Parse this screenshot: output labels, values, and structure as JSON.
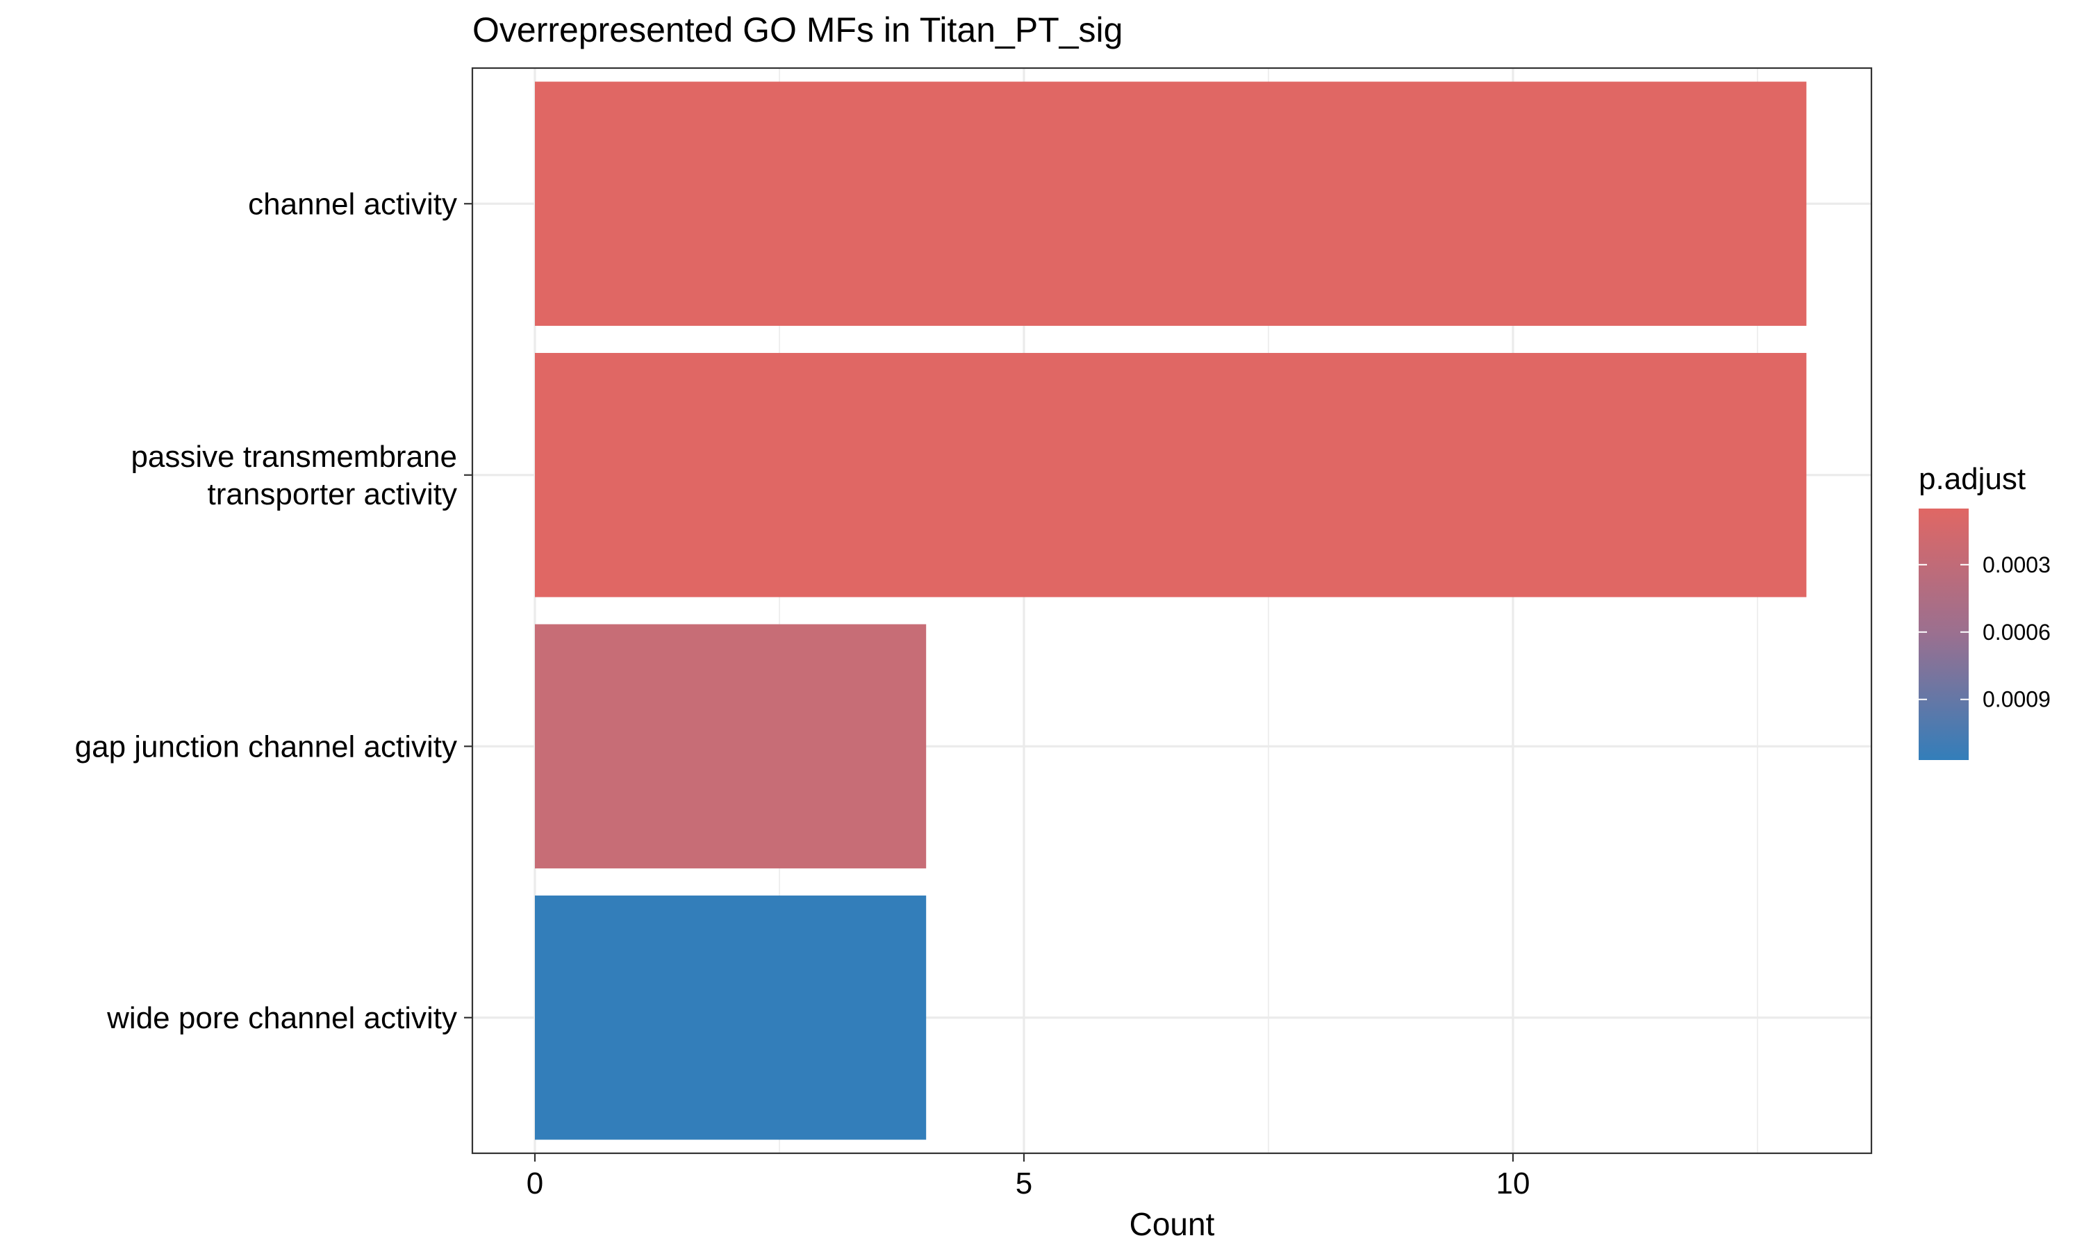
{
  "chart_data": {
    "type": "bar",
    "orientation": "horizontal",
    "title": "Overrepresented GO MFs in Titan_PT_sig",
    "xlabel": "Count",
    "ylabel": "",
    "xlim": [
      -1.3,
      27.3
    ],
    "x_ticks": [
      0,
      5,
      10
    ],
    "grid": true,
    "categories": [
      [
        "channel activity"
      ],
      [
        "passive transmembrane",
        "transporter activity"
      ],
      [
        "gap junction channel activity"
      ],
      [
        "wide pore channel activity"
      ]
    ],
    "values": [
      13,
      13,
      4,
      4
    ],
    "p_adjust": [
      5e-05,
      5e-05,
      0.00048,
      0.00117
    ],
    "bar_colors": [
      "#E06764",
      "#E06764",
      "#C76D76",
      "#337EBA"
    ],
    "legend": {
      "title": "p.adjust",
      "position": "right",
      "range": [
        5e-05,
        0.00117
      ],
      "tick_values": [
        0.0003,
        0.0006,
        0.0009
      ],
      "tick_labels": [
        "0.0003",
        "0.0006",
        "0.0009"
      ],
      "color_low": "#E06764",
      "color_high": "#337EBA"
    }
  }
}
